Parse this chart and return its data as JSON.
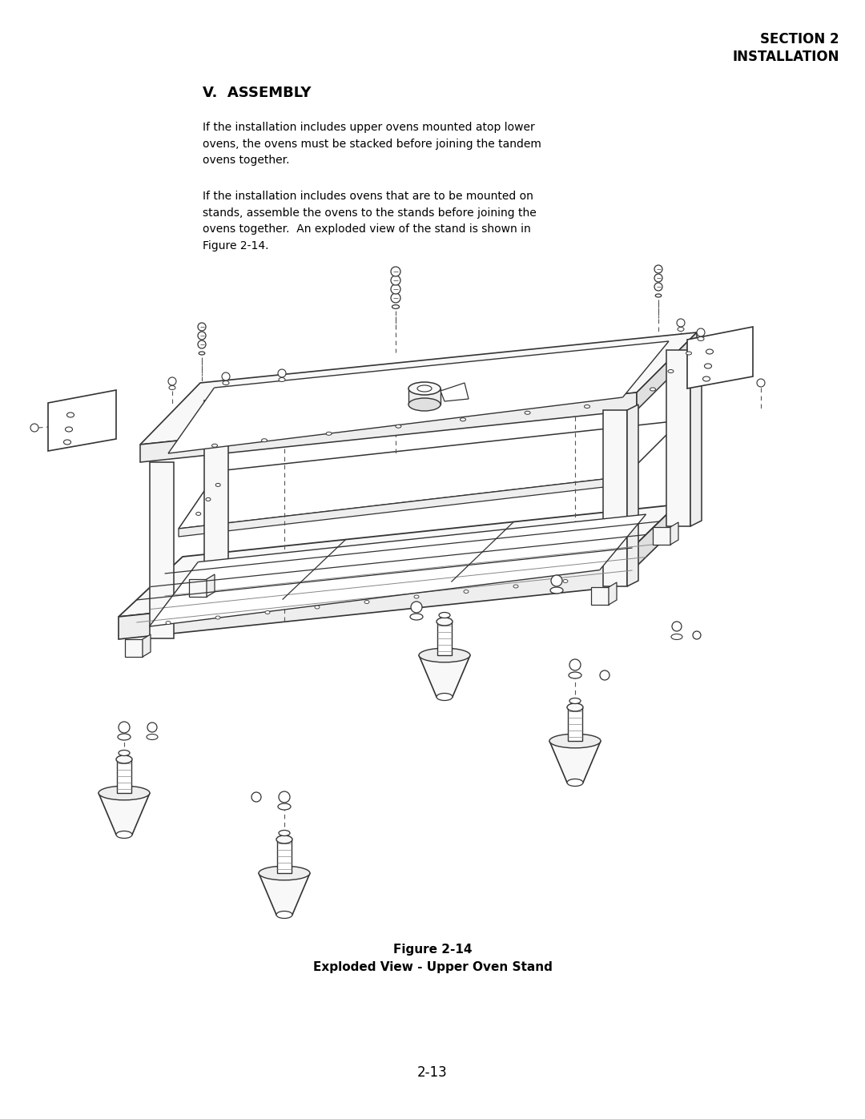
{
  "page_width": 10.8,
  "page_height": 13.97,
  "bg_color": "#ffffff",
  "header_right_line1": "SECTION 2",
  "header_right_line2": "INSTALLATION",
  "section_title": "V.  ASSEMBLY",
  "para1": "If the installation includes upper ovens mounted atop lower\novens, the ovens must be stacked before joining the tandem\novens together.",
  "para2": "If the installation includes ovens that are to be mounted on\nstands, assemble the ovens to the stands before joining the\novens together.  An exploded view of the stand is shown in\nFigure 2-14.",
  "figure_caption_line1": "Figure 2-14",
  "figure_caption_line2": "Exploded View - Upper Oven Stand",
  "page_number": "2-13",
  "text_color": "#000000",
  "line_color": "#333333",
  "face_light": "#f8f8f8",
  "face_mid": "#eeeeee",
  "face_dark": "#e0e0e0"
}
